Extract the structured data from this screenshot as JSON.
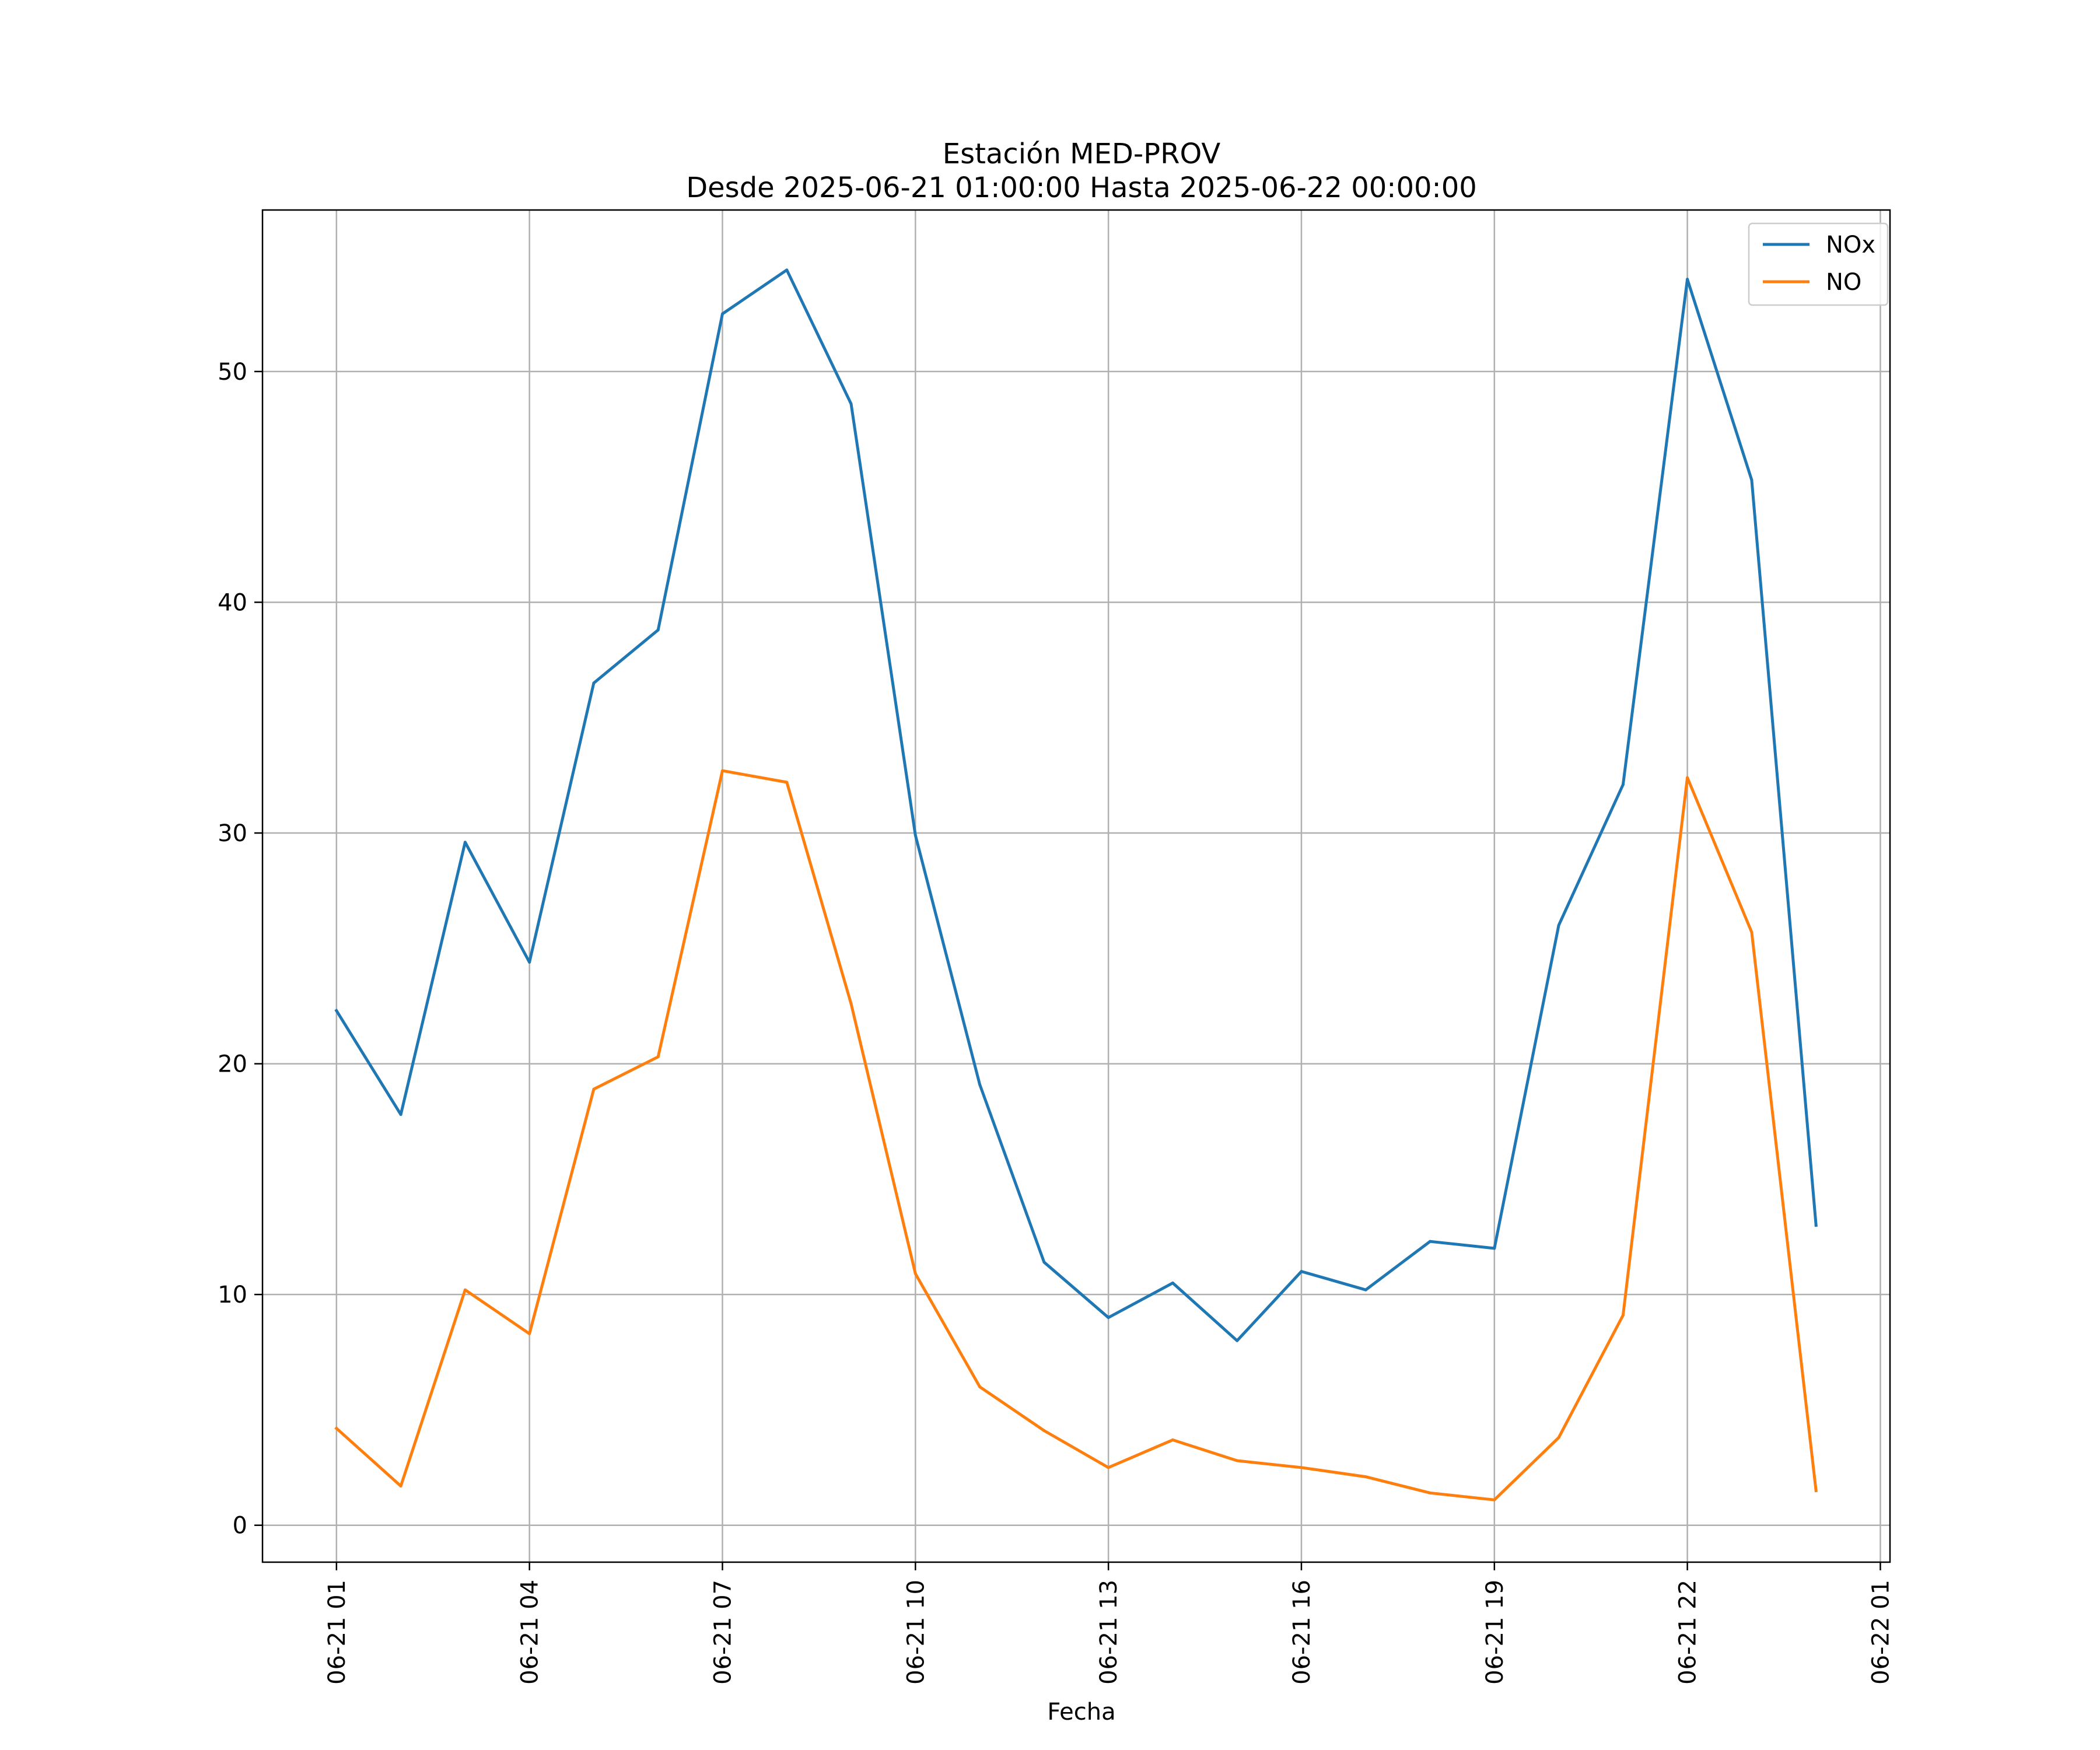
{
  "chart_data": {
    "type": "line",
    "title": "Estación MED-PROV",
    "subtitle": "Desde 2025-06-21 01:00:00 Hasta 2025-06-22 00:00:00",
    "xlabel": "Fecha",
    "ylabel": "",
    "x": [
      "2025-06-21 01:00",
      "2025-06-21 02:00",
      "2025-06-21 03:00",
      "2025-06-21 04:00",
      "2025-06-21 05:00",
      "2025-06-21 06:00",
      "2025-06-21 07:00",
      "2025-06-21 08:00",
      "2025-06-21 09:00",
      "2025-06-21 10:00",
      "2025-06-21 11:00",
      "2025-06-21 12:00",
      "2025-06-21 13:00",
      "2025-06-21 14:00",
      "2025-06-21 15:00",
      "2025-06-21 16:00",
      "2025-06-21 17:00",
      "2025-06-21 18:00",
      "2025-06-21 19:00",
      "2025-06-21 20:00",
      "2025-06-21 21:00",
      "2025-06-21 22:00",
      "2025-06-21 23:00",
      "2025-06-22 00:00"
    ],
    "series": [
      {
        "name": "NOx",
        "color": "#1f77b4",
        "values": [
          22.3,
          17.8,
          29.6,
          24.4,
          36.5,
          38.8,
          52.5,
          54.4,
          48.6,
          29.9,
          19.1,
          11.4,
          9.0,
          10.5,
          8.0,
          11.0,
          10.2,
          12.3,
          12.0,
          26.0,
          32.1,
          54.0,
          45.3,
          13.0
        ]
      },
      {
        "name": "NO",
        "color": "#ff7f0e",
        "values": [
          4.2,
          1.7,
          10.2,
          8.3,
          18.9,
          20.3,
          32.7,
          32.2,
          22.6,
          10.9,
          6.0,
          4.1,
          2.5,
          3.7,
          2.8,
          2.5,
          2.1,
          1.4,
          1.1,
          3.8,
          9.1,
          32.4,
          25.7,
          1.5
        ]
      }
    ],
    "xlim": [
      "2025-06-20 23:51",
      "2025-06-22 01:09"
    ],
    "ylim": [
      -1.6,
      57.0
    ],
    "xticks": [
      "2025-06-21 01:00",
      "2025-06-21 04:00",
      "2025-06-21 07:00",
      "2025-06-21 10:00",
      "2025-06-21 13:00",
      "2025-06-21 16:00",
      "2025-06-21 19:00",
      "2025-06-21 22:00",
      "2025-06-22 01:00"
    ],
    "xtick_labels": [
      "06-21 01",
      "06-21 04",
      "06-21 07",
      "06-21 10",
      "06-21 13",
      "06-21 16",
      "06-21 19",
      "06-21 22",
      "06-22 01"
    ],
    "yticks": [
      0,
      10,
      20,
      30,
      40,
      50
    ],
    "ytick_labels": [
      "0",
      "10",
      "20",
      "30",
      "40",
      "50"
    ],
    "grid": true,
    "legend_position": "upper right"
  }
}
